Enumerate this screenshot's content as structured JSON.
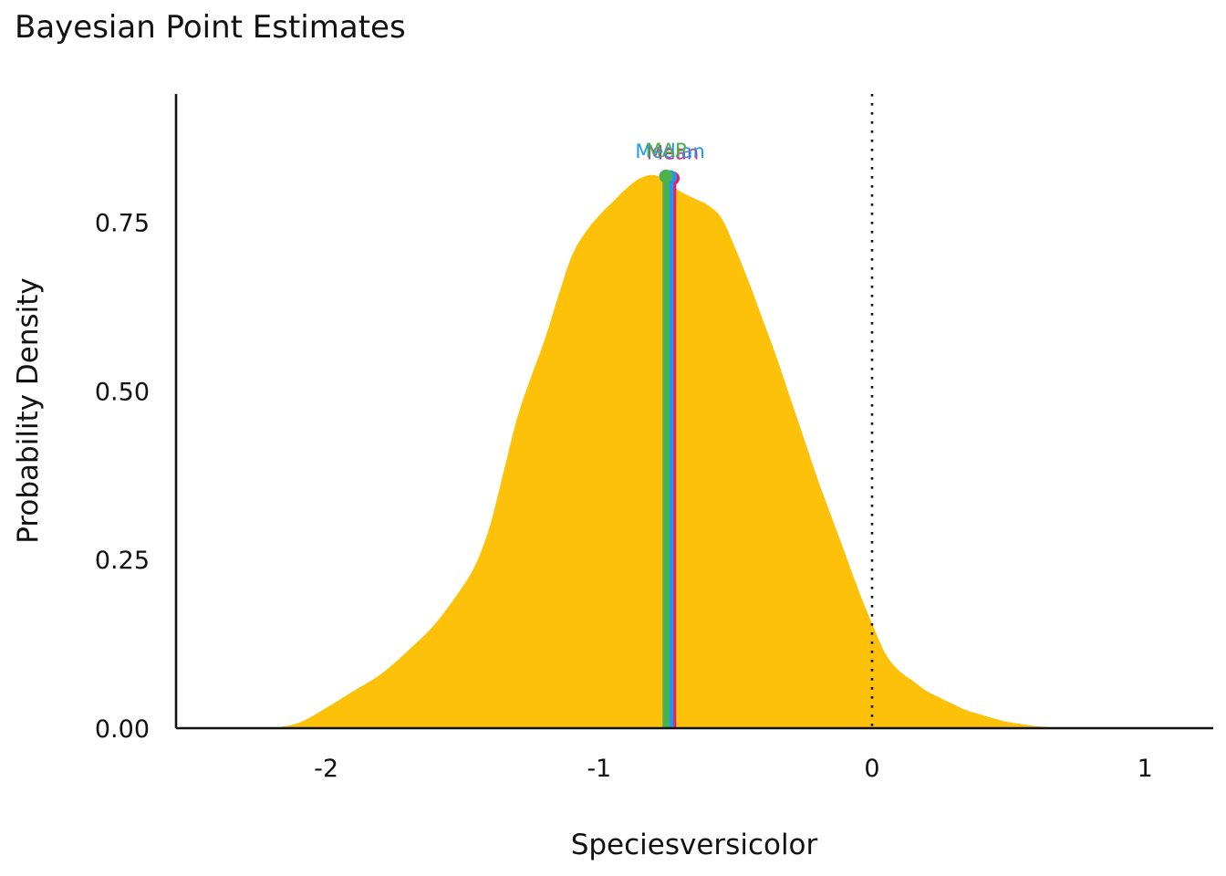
{
  "chart_data": {
    "type": "area",
    "title": "Bayesian Point Estimates",
    "xlabel": "Speciesversicolor",
    "ylabel": "Probability Density",
    "xlim": [
      -2.55,
      1.25
    ],
    "ylim": [
      0,
      0.94
    ],
    "x_ticks": [
      -2,
      -1,
      0,
      1
    ],
    "x_tick_labels": [
      "-2",
      "-1",
      "0",
      "1"
    ],
    "y_ticks": [
      0,
      0.25,
      0.5,
      0.75
    ],
    "y_tick_labels": [
      "0.00",
      "0.25",
      "0.50",
      "0.75"
    ],
    "grid": false,
    "reference_line": {
      "x": 0,
      "style": "dotted",
      "color": "#111111"
    },
    "density": {
      "color": "#FDC10A",
      "x": [
        -2.2,
        -2.1,
        -2.0,
        -1.9,
        -1.8,
        -1.7,
        -1.6,
        -1.5,
        -1.45,
        -1.4,
        -1.35,
        -1.3,
        -1.25,
        -1.2,
        -1.15,
        -1.1,
        -1.05,
        -1.0,
        -0.95,
        -0.9,
        -0.85,
        -0.8,
        -0.75,
        -0.7,
        -0.65,
        -0.6,
        -0.55,
        -0.5,
        -0.45,
        -0.4,
        -0.35,
        -0.3,
        -0.25,
        -0.2,
        -0.15,
        -0.1,
        -0.05,
        0.0,
        0.05,
        0.1,
        0.15,
        0.2,
        0.25,
        0.3,
        0.35,
        0.4,
        0.45,
        0.5,
        0.55,
        0.6,
        0.65,
        0.7,
        0.75,
        0.8
      ],
      "y": [
        0.0,
        0.008,
        0.03,
        0.055,
        0.08,
        0.115,
        0.155,
        0.21,
        0.245,
        0.3,
        0.38,
        0.46,
        0.52,
        0.575,
        0.64,
        0.7,
        0.735,
        0.76,
        0.78,
        0.8,
        0.815,
        0.82,
        0.81,
        0.795,
        0.785,
        0.775,
        0.755,
        0.71,
        0.66,
        0.605,
        0.55,
        0.49,
        0.43,
        0.37,
        0.315,
        0.26,
        0.205,
        0.155,
        0.11,
        0.085,
        0.07,
        0.055,
        0.045,
        0.035,
        0.026,
        0.02,
        0.014,
        0.009,
        0.006,
        0.003,
        0.0015,
        0.0007,
        0.0002,
        0.0
      ]
    },
    "estimates": [
      {
        "name": "Mean",
        "x": -0.73,
        "y": 0.815,
        "color": "#E91E63"
      },
      {
        "name": "Median",
        "x": -0.74,
        "y": 0.817,
        "color": "#2196F3"
      },
      {
        "name": "MAP",
        "x": -0.755,
        "y": 0.818,
        "color": "#4CAF50"
      }
    ]
  }
}
